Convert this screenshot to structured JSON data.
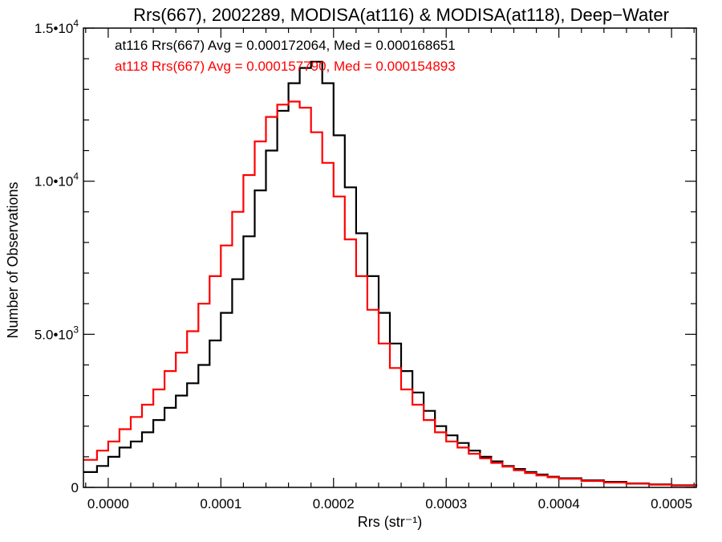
{
  "chart_data": {
    "type": "line",
    "title": "Rrs(667), 2002289, MODISA(at116) & MODISA(at118), Deep−Water",
    "xlabel": "Rrs (str⁻¹)",
    "ylabel": "Number of Observations",
    "xlim": [
      -2.2e-05,
      0.000522
    ],
    "ylim": [
      0,
      15000
    ],
    "x_ticks": [
      {
        "value": 0.0,
        "label": "0.0000"
      },
      {
        "value": 0.0001,
        "label": "0.0001"
      },
      {
        "value": 0.0002,
        "label": "0.0002"
      },
      {
        "value": 0.0003,
        "label": "0.0003"
      },
      {
        "value": 0.0004,
        "label": "0.0004"
      },
      {
        "value": 0.0005,
        "label": "0.0005"
      }
    ],
    "y_ticks": [
      {
        "value": 0,
        "label": "0",
        "exp": ""
      },
      {
        "value": 5000,
        "label": "5.0•10",
        "exp": "3"
      },
      {
        "value": 10000,
        "label": "1.0•10",
        "exp": "4"
      },
      {
        "value": 15000,
        "label": "1.5•10",
        "exp": "4"
      }
    ],
    "series": [
      {
        "name": "at116",
        "color": "#000000",
        "annotation": "at116 Rrs(667) Avg = 0.000172064, Med = 0.000168651",
        "x": [
          -2.2e-05,
          -1e-05,
          0.0,
          1e-05,
          2e-05,
          3e-05,
          4e-05,
          5e-05,
          6e-05,
          7e-05,
          8e-05,
          9e-05,
          0.0001,
          0.00011,
          0.00012,
          0.00013,
          0.00014,
          0.00015,
          0.00016,
          0.00017,
          0.00018,
          0.00019,
          0.0002,
          0.00021,
          0.00022,
          0.00023,
          0.00024,
          0.00025,
          0.00026,
          0.00027,
          0.00028,
          0.00029,
          0.0003,
          0.00031,
          0.00032,
          0.00033,
          0.00034,
          0.00035,
          0.00036,
          0.00037,
          0.00038,
          0.00039,
          0.0004,
          0.00042,
          0.00044,
          0.00046,
          0.00048,
          0.0005,
          0.000522
        ],
        "y": [
          500,
          700,
          1000,
          1300,
          1500,
          1800,
          2200,
          2600,
          3000,
          3400,
          4000,
          4800,
          5700,
          6800,
          8200,
          9700,
          11000,
          12300,
          13200,
          13700,
          13900,
          13200,
          11500,
          9800,
          8300,
          6900,
          5700,
          4700,
          3800,
          3100,
          2500,
          2000,
          1700,
          1450,
          1200,
          1000,
          850,
          700,
          600,
          500,
          420,
          350,
          300,
          230,
          180,
          130,
          100,
          70,
          40
        ]
      },
      {
        "name": "at118",
        "color": "#ff0000",
        "annotation": "at118 Rrs(667) Avg = 0.000157790, Med = 0.000154893",
        "x": [
          -2.2e-05,
          -1e-05,
          0.0,
          1e-05,
          2e-05,
          3e-05,
          4e-05,
          5e-05,
          6e-05,
          7e-05,
          8e-05,
          9e-05,
          0.0001,
          0.00011,
          0.00012,
          0.00013,
          0.00014,
          0.00015,
          0.00016,
          0.00017,
          0.00018,
          0.00019,
          0.0002,
          0.00021,
          0.00022,
          0.00023,
          0.00024,
          0.00025,
          0.00026,
          0.00027,
          0.00028,
          0.00029,
          0.0003,
          0.00031,
          0.00032,
          0.00033,
          0.00034,
          0.00035,
          0.00036,
          0.00037,
          0.00038,
          0.00039,
          0.0004,
          0.00042,
          0.00044,
          0.00046,
          0.00048,
          0.0005,
          0.000522
        ],
        "y": [
          900,
          1200,
          1500,
          1900,
          2300,
          2700,
          3200,
          3800,
          4400,
          5100,
          6000,
          6900,
          7900,
          9000,
          10200,
          11300,
          12100,
          12500,
          12600,
          12400,
          11600,
          10600,
          9500,
          8100,
          6900,
          5800,
          4700,
          3900,
          3200,
          2700,
          2200,
          1800,
          1500,
          1300,
          1100,
          950,
          800,
          680,
          560,
          470,
          390,
          330,
          280,
          210,
          160,
          120,
          90,
          60,
          40
        ]
      }
    ]
  }
}
